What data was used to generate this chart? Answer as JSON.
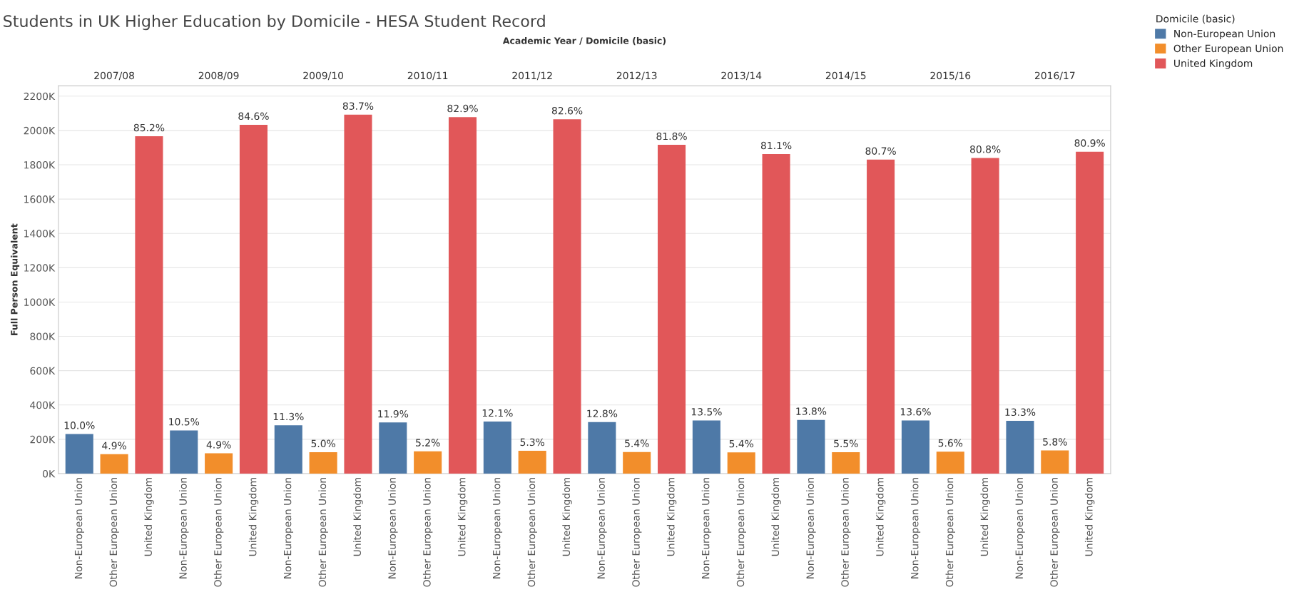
{
  "chart_data": {
    "type": "bar",
    "title": "Students in UK Higher Education by Domicile - HESA Student Record",
    "ylabel": "Full Person Equivalent",
    "legend_title": "Domicile (basic)",
    "legend": "right",
    "grid": "y",
    "categories": [
      "Non-European Union",
      "Other European Union",
      "United Kingdom",
      "Non-European Union",
      "Other European Union",
      "United Kingdom",
      "Non-European Union",
      "Other European Union",
      "United Kingdom",
      "Non-European Union",
      "Other European Union",
      "United Kingdom",
      "Non-European Union",
      "Other European Union",
      "United Kingdom",
      "Non-European Union",
      "Other European Union",
      "United Kingdom",
      "Non-European Union",
      "Other European Union",
      "United Kingdom",
      "Non-European Union",
      "Other European Union",
      "United Kingdom",
      "Non-European Union",
      "Other European Union",
      "United Kingdom",
      "Non-European Union",
      "Other European Union",
      "United Kingdom"
    ],
    "ylim": [
      0,
      2260
    ],
    "yticks": [
      {
        "value": 0,
        "label": "0K"
      },
      {
        "value": 200,
        "label": "200K"
      },
      {
        "value": 400,
        "label": "400K"
      },
      {
        "value": 600,
        "label": "600K"
      },
      {
        "value": 800,
        "label": "800K"
      },
      {
        "value": 1000,
        "label": "1000K"
      },
      {
        "value": 1200,
        "label": "1200K"
      },
      {
        "value": 1400,
        "label": "1400K"
      },
      {
        "value": 1600,
        "label": "1600K"
      },
      {
        "value": 1800,
        "label": "1800K"
      },
      {
        "value": 2000,
        "label": "2000K"
      },
      {
        "value": 2200,
        "label": "2200K"
      }
    ],
    "series": [
      {
        "name": "Non-European Union",
        "color": "#4e79a7",
        "values": [
          231,
          null,
          null,
          252,
          null,
          null,
          282,
          null,
          null,
          298,
          null,
          null,
          303,
          null,
          null,
          300,
          null,
          null,
          310,
          null,
          null,
          313,
          null,
          null,
          310,
          null,
          null,
          308,
          null,
          null
        ]
      },
      {
        "name": "Other European Union",
        "color": "#f28e2b",
        "values": [
          null,
          113,
          null,
          null,
          118,
          null,
          null,
          125,
          null,
          null,
          130,
          null,
          null,
          133,
          null,
          null,
          126,
          null,
          null,
          124,
          null,
          null,
          125,
          null,
          null,
          128,
          null,
          null,
          135,
          null
        ]
      },
      {
        "name": "United Kingdom",
        "color": "#e15759",
        "values": [
          null,
          null,
          1966,
          null,
          null,
          2033,
          null,
          null,
          2092,
          null,
          null,
          2078,
          null,
          null,
          2065,
          null,
          null,
          1916,
          null,
          null,
          1862,
          null,
          null,
          1830,
          null,
          null,
          1840,
          null,
          null,
          1876
        ]
      }
    ],
    "annotations": [
      "Academic Year / Domicile (basic)",
      "2007/08",
      "2008/09",
      "2009/10",
      "2010/11",
      "2011/12",
      "2012/13",
      "2013/14",
      "2014/15",
      "2015/16",
      "2016/17",
      "10.0%",
      "4.9%",
      "85.2%",
      "10.5%",
      "4.9%",
      "84.6%",
      "11.3%",
      "5.0%",
      "83.7%",
      "11.9%",
      "5.2%",
      "82.9%",
      "12.1%",
      "5.3%",
      "82.6%",
      "12.8%",
      "5.4%",
      "81.8%",
      "13.5%",
      "5.4%",
      "81.1%",
      "13.8%",
      "5.5%",
      "80.7%",
      "13.6%",
      "5.6%",
      "80.8%",
      "13.3%",
      "5.8%",
      "80.9%"
    ]
  }
}
